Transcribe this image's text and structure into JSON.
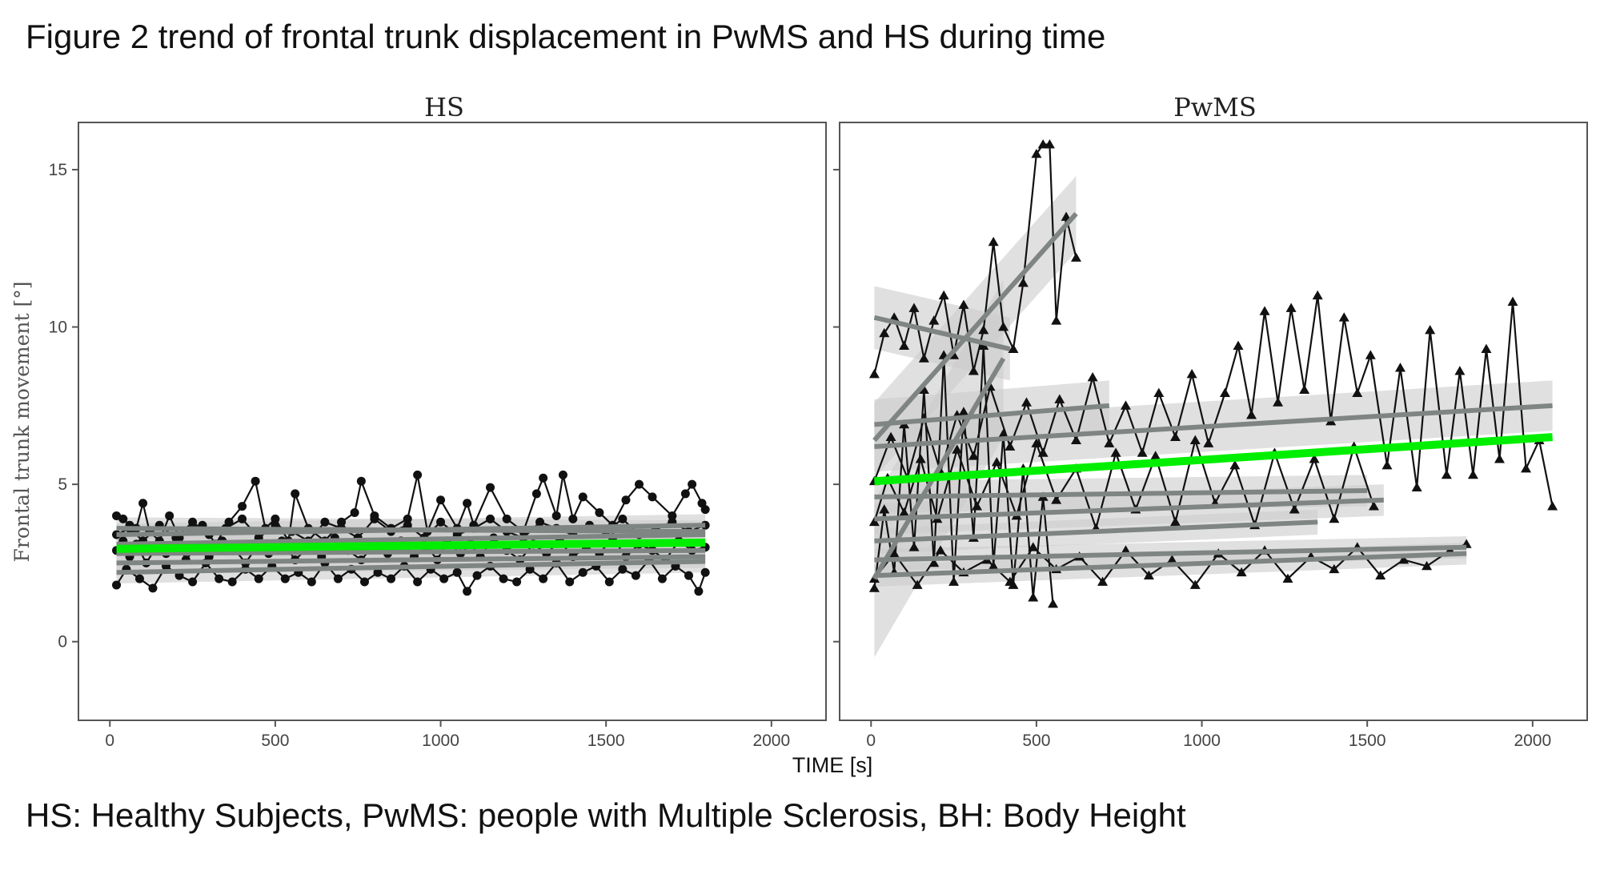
{
  "figure_title": "Figure 2 trend of frontal trunk displacement in PwMS and HS during time",
  "caption": "HS: Healthy Subjects, PwMS: people with Multiple Sclerosis, BH: Body Height",
  "colors": {
    "trend": "#00ee00",
    "individual_fit": "#7f8582",
    "ribbon": "#cccccc",
    "data": "#111111"
  },
  "chart_data": [
    {
      "type": "line",
      "panel": "HS",
      "marker": "circle",
      "xlabel": "TIME [s]",
      "ylabel": "Frontal trunk movement [°]",
      "xlim": [
        -95,
        2165
      ],
      "ylim": [
        -2.5,
        16.5
      ],
      "xticks": [
        0,
        500,
        1000,
        1500,
        2000
      ],
      "yticks": [
        0,
        5,
        10,
        15
      ],
      "grid": false,
      "overall_trend": {
        "x": [
          20,
          1800
        ],
        "y": [
          2.95,
          3.15
        ]
      },
      "fits": [
        {
          "x": [
            20,
            1800
          ],
          "y": [
            2.2,
            2.55
          ],
          "ci": 0.35
        },
        {
          "x": [
            20,
            1800
          ],
          "y": [
            2.5,
            2.7
          ],
          "ci": 0.35
        },
        {
          "x": [
            20,
            1800
          ],
          "y": [
            2.8,
            2.9
          ],
          "ci": 0.35
        },
        {
          "x": [
            20,
            1800
          ],
          "y": [
            3.1,
            3.4
          ],
          "ci": 0.35
        },
        {
          "x": [
            20,
            1800
          ],
          "y": [
            3.4,
            3.7
          ],
          "ci": 0.35
        },
        {
          "x": [
            20,
            1800
          ],
          "y": [
            3.6,
            3.5
          ],
          "ci": 0.35
        }
      ],
      "series": [
        {
          "x": [
            20,
            40,
            60,
            80,
            100,
            120,
            150,
            180,
            210,
            250,
            280,
            320,
            360,
            400,
            440,
            470,
            500,
            540,
            560,
            600,
            650,
            700,
            740,
            760,
            800,
            850,
            900,
            930,
            960,
            1000,
            1050,
            1080,
            1100,
            1150,
            1200,
            1250,
            1290,
            1310,
            1350,
            1370,
            1400,
            1430,
            1480,
            1520,
            1560,
            1600,
            1640,
            1700,
            1740,
            1760,
            1790,
            1800
          ],
          "y": [
            4.0,
            3.9,
            3.7,
            3.6,
            4.4,
            3.5,
            3.2,
            4.0,
            3.3,
            3.6,
            3.7,
            3.1,
            3.8,
            4.3,
            5.1,
            3.6,
            3.9,
            3.2,
            4.7,
            3.6,
            3.2,
            3.8,
            4.1,
            5.1,
            4.0,
            3.6,
            3.9,
            5.3,
            3.5,
            4.5,
            3.6,
            4.4,
            3.7,
            4.9,
            3.9,
            3.5,
            4.7,
            5.2,
            4.0,
            5.3,
            3.9,
            4.6,
            4.1,
            3.7,
            4.5,
            5.0,
            4.6,
            4.0,
            4.7,
            5.0,
            4.4,
            4.2
          ]
        },
        {
          "x": [
            20,
            40,
            60,
            80,
            110,
            140,
            170,
            200,
            230,
            260,
            300,
            340,
            380,
            410,
            450,
            480,
            520,
            560,
            600,
            640,
            680,
            720,
            760,
            800,
            840,
            880,
            920,
            960,
            990,
            1020,
            1060,
            1090,
            1120,
            1160,
            1200,
            1240,
            1280,
            1320,
            1360,
            1400,
            1440,
            1480,
            1520,
            1560,
            1600,
            1640,
            1680,
            1720,
            1760,
            1800
          ],
          "y": [
            2.9,
            3.2,
            2.7,
            3.1,
            2.5,
            3.0,
            2.8,
            3.3,
            2.6,
            3.0,
            2.7,
            3.2,
            2.9,
            2.5,
            3.1,
            2.8,
            3.2,
            2.6,
            3.0,
            2.7,
            3.3,
            2.9,
            2.6,
            3.1,
            2.8,
            3.2,
            2.7,
            3.0,
            2.6,
            3.2,
            2.8,
            3.1,
            2.7,
            3.3,
            2.9,
            2.6,
            3.1,
            2.8,
            3.2,
            2.7,
            3.0,
            2.8,
            3.3,
            2.7,
            3.1,
            2.9,
            2.6,
            3.2,
            2.9,
            3.0
          ]
        },
        {
          "x": [
            20,
            50,
            90,
            130,
            170,
            210,
            250,
            290,
            330,
            370,
            410,
            450,
            490,
            530,
            570,
            610,
            650,
            690,
            730,
            770,
            810,
            850,
            890,
            930,
            970,
            1010,
            1050,
            1080,
            1110,
            1150,
            1190,
            1230,
            1270,
            1310,
            1350,
            1390,
            1430,
            1470,
            1510,
            1550,
            1590,
            1630,
            1670,
            1710,
            1750,
            1780,
            1800
          ],
          "y": [
            1.8,
            2.3,
            2.0,
            1.7,
            2.4,
            2.1,
            1.9,
            2.5,
            2.0,
            1.9,
            2.3,
            2.0,
            2.4,
            2.0,
            2.2,
            1.9,
            2.5,
            2.0,
            2.3,
            1.9,
            2.2,
            2.0,
            2.4,
            1.9,
            2.3,
            2.0,
            2.2,
            1.6,
            2.1,
            2.4,
            2.0,
            1.9,
            2.3,
            2.0,
            2.5,
            1.9,
            2.2,
            2.4,
            1.9,
            2.3,
            2.1,
            2.6,
            2.0,
            2.4,
            2.1,
            1.6,
            2.2
          ]
        },
        {
          "x": [
            20,
            60,
            100,
            150,
            200,
            250,
            300,
            350,
            400,
            450,
            500,
            550,
            600,
            650,
            700,
            750,
            800,
            850,
            900,
            950,
            1000,
            1050,
            1100,
            1150,
            1200,
            1250,
            1300,
            1350,
            1400,
            1450,
            1500,
            1550,
            1600,
            1650,
            1700,
            1750,
            1800
          ],
          "y": [
            3.4,
            3.6,
            3.2,
            3.7,
            3.3,
            3.8,
            3.4,
            3.6,
            3.9,
            3.3,
            3.7,
            3.5,
            3.2,
            3.8,
            3.6,
            3.3,
            3.9,
            3.5,
            3.7,
            3.3,
            3.8,
            3.4,
            3.6,
            3.9,
            3.5,
            3.3,
            3.8,
            3.6,
            3.4,
            3.7,
            3.5,
            3.9,
            3.4,
            3.6,
            3.8,
            3.5,
            3.7
          ]
        }
      ]
    },
    {
      "type": "line",
      "panel": "PwMS",
      "marker": "triangle",
      "xlabel": "TIME [s]",
      "ylabel": "Frontal trunk movement [°]",
      "xlim": [
        -95,
        2165
      ],
      "ylim": [
        -2.5,
        16.5
      ],
      "xticks": [
        0,
        500,
        1000,
        1500,
        2000
      ],
      "yticks": [
        0,
        5,
        10,
        15
      ],
      "grid": false,
      "overall_trend": {
        "x": [
          10,
          2060
        ],
        "y": [
          5.1,
          6.5
        ]
      },
      "fits": [
        {
          "x": [
            10,
            620
          ],
          "y": [
            6.4,
            13.6
          ],
          "ci": 1.2
        },
        {
          "x": [
            10,
            420
          ],
          "y": [
            10.3,
            9.3
          ],
          "ci": 1.0
        },
        {
          "x": [
            10,
            720
          ],
          "y": [
            6.9,
            7.5
          ],
          "ci": 0.8
        },
        {
          "x": [
            10,
            2060
          ],
          "y": [
            6.2,
            7.5
          ],
          "ci": 0.8
        },
        {
          "x": [
            10,
            1500
          ],
          "y": [
            4.6,
            4.8
          ],
          "ci": 0.5
        },
        {
          "x": [
            10,
            1550
          ],
          "y": [
            3.9,
            4.5
          ],
          "ci": 0.5
        },
        {
          "x": [
            10,
            1350
          ],
          "y": [
            3.2,
            3.8
          ],
          "ci": 0.4
        },
        {
          "x": [
            10,
            1800
          ],
          "y": [
            2.1,
            2.8
          ],
          "ci": 0.35
        },
        {
          "x": [
            10,
            1800
          ],
          "y": [
            2.6,
            3.0
          ],
          "ci": 0.35
        },
        {
          "x": [
            10,
            400
          ],
          "y": [
            2.0,
            9.0
          ],
          "ci": 2.5
        }
      ],
      "series": [
        {
          "x": [
            10,
            40,
            70,
            100,
            130,
            160,
            190,
            220,
            250,
            280,
            310,
            340,
            370,
            400,
            430,
            460,
            500,
            520,
            540,
            560,
            590,
            620
          ],
          "y": [
            8.5,
            9.8,
            10.3,
            9.4,
            10.6,
            9.0,
            10.2,
            11.0,
            9.1,
            10.7,
            8.6,
            9.9,
            12.7,
            10.0,
            9.3,
            11.4,
            15.5,
            15.8,
            15.8,
            10.2,
            13.5,
            12.2
          ]
        },
        {
          "x": [
            10,
            60,
            110,
            160,
            210,
            260,
            310,
            360,
            420,
            470,
            520,
            570,
            620,
            670,
            720,
            770,
            820,
            870,
            920,
            970,
            1020,
            1070,
            1110,
            1150,
            1190,
            1230,
            1270,
            1310,
            1350,
            1390,
            1430,
            1470,
            1510,
            1560,
            1600,
            1650,
            1690,
            1740,
            1780,
            1820,
            1860,
            1900,
            1940,
            1980,
            2020,
            2060
          ],
          "y": [
            5.1,
            6.5,
            5.2,
            7.1,
            5.4,
            7.2,
            5.9,
            8.1,
            6.2,
            7.6,
            6.0,
            7.7,
            6.4,
            8.4,
            6.3,
            7.5,
            6.0,
            7.9,
            6.5,
            8.5,
            6.3,
            7.9,
            9.4,
            7.2,
            10.5,
            7.6,
            10.6,
            8.0,
            11.0,
            7.0,
            10.3,
            7.9,
            9.1,
            5.6,
            8.7,
            4.9,
            9.9,
            5.3,
            8.6,
            5.3,
            9.3,
            5.8,
            10.8,
            5.5,
            6.4,
            4.3
          ]
        },
        {
          "x": [
            10,
            50,
            100,
            150,
            200,
            260,
            320,
            380,
            440,
            500,
            560,
            620,
            680,
            740,
            800,
            860,
            920,
            980,
            1040,
            1100,
            1160,
            1220,
            1280,
            1340,
            1400,
            1460,
            1520
          ],
          "y": [
            3.8,
            5.2,
            4.1,
            5.8,
            3.9,
            6.1,
            4.3,
            5.7,
            4.0,
            6.3,
            4.5,
            5.5,
            3.6,
            6.0,
            4.2,
            5.9,
            3.8,
            6.4,
            4.4,
            5.6,
            3.7,
            6.0,
            4.2,
            5.8,
            3.9,
            6.2,
            4.3
          ]
        },
        {
          "x": [
            10,
            70,
            140,
            210,
            280,
            350,
            420,
            490,
            560,
            630,
            700,
            770,
            840,
            910,
            980,
            1050,
            1120,
            1190,
            1260,
            1330,
            1400,
            1470,
            1540,
            1610,
            1680,
            1750,
            1800
          ],
          "y": [
            2.0,
            2.8,
            1.8,
            2.9,
            2.2,
            2.6,
            1.9,
            3.0,
            2.3,
            2.7,
            1.9,
            2.9,
            2.1,
            2.6,
            1.8,
            2.8,
            2.2,
            2.9,
            2.0,
            2.7,
            2.3,
            3.0,
            2.1,
            2.6,
            2.4,
            2.9,
            3.1
          ]
        },
        {
          "x": [
            10,
            40,
            70,
            100,
            130,
            160,
            190,
            220,
            250,
            280,
            310,
            340,
            370,
            400,
            430,
            460,
            490,
            520,
            550
          ],
          "y": [
            1.7,
            4.2,
            2.2,
            6.9,
            3.0,
            8.0,
            2.5,
            9.1,
            1.9,
            7.3,
            3.3,
            9.4,
            2.4,
            6.6,
            1.8,
            5.5,
            1.4,
            4.6,
            1.2
          ]
        }
      ]
    }
  ]
}
